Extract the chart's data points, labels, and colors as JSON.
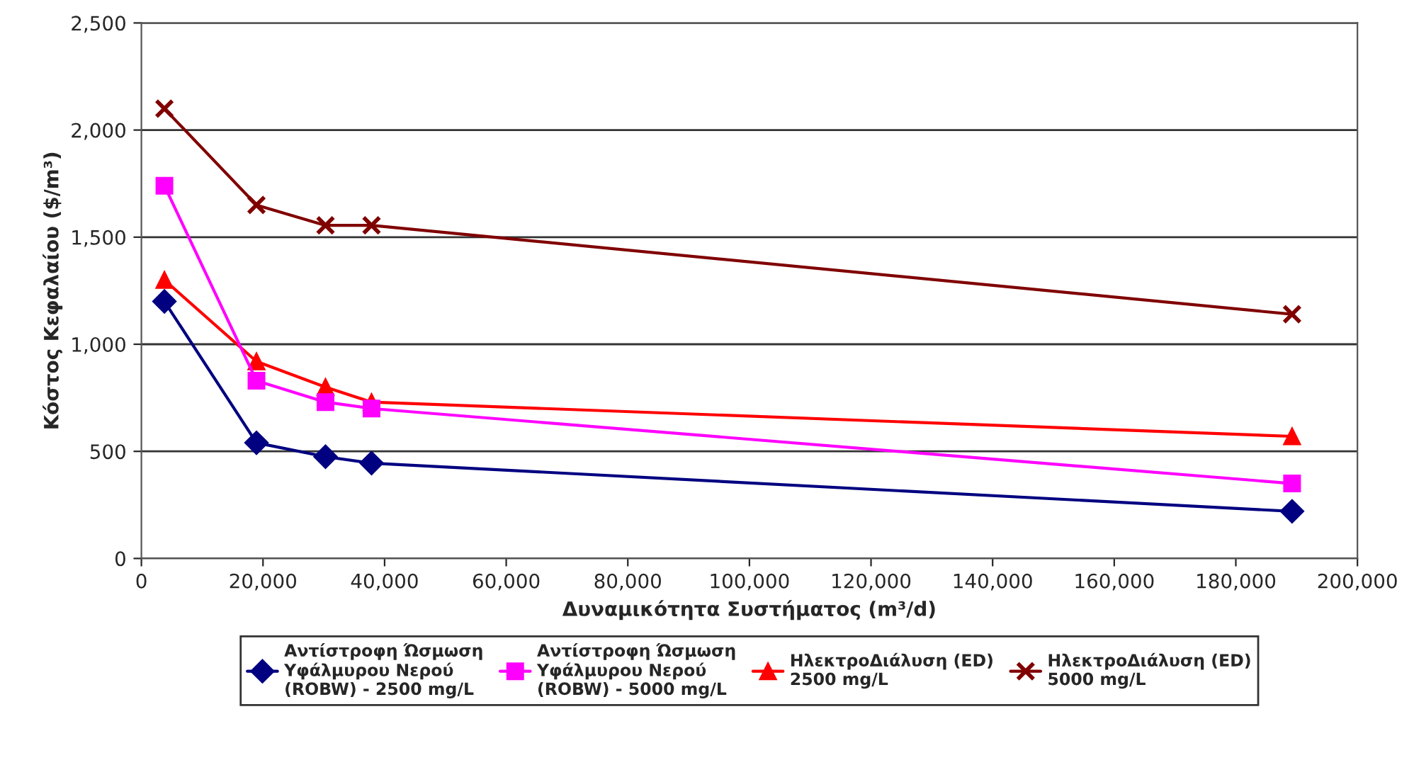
{
  "chart_data": {
    "type": "line",
    "xlabel": "Δυναμικότητα Συστήματος (m³/d)",
    "ylabel": "Κόστος Κεφαλαίου ($/m³)",
    "x": [
      3785,
      18925,
      30280,
      37850,
      189250
    ],
    "series": [
      {
        "name": "Αντίστροφη Ώσμωση Υφάλμυρου Νερού (ROBW) - 2500 mg/L",
        "color": "#000080",
        "marker": "diamond",
        "values": [
          1200,
          540,
          475,
          445,
          220
        ]
      },
      {
        "name": "Αντίστροφη Ώσμωση Υφάλμυρου Νερού (ROBW) - 5000 mg/L",
        "color": "#ff00ff",
        "marker": "square",
        "values": [
          1740,
          830,
          730,
          700,
          350
        ]
      },
      {
        "name": "ΗλεκτροΔιάλυση (ED) 2500 mg/L",
        "color": "#ff0000",
        "marker": "triangle",
        "values": [
          1300,
          920,
          800,
          730,
          570
        ]
      },
      {
        "name": "ΗλεκτροΔιάλυση (ED) 5000 mg/L",
        "color": "#800000",
        "marker": "cross",
        "values": [
          2100,
          1650,
          1555,
          1555,
          1140
        ]
      }
    ],
    "xlim": [
      0,
      200000
    ],
    "xticks": [
      {
        "value": 0,
        "label": "0"
      },
      {
        "value": 20000,
        "label": "20,000"
      },
      {
        "value": 40000,
        "label": "40,000"
      },
      {
        "value": 60000,
        "label": "60,000"
      },
      {
        "value": 80000,
        "label": "80,000"
      },
      {
        "value": 100000,
        "label": "100,000"
      },
      {
        "value": 120000,
        "label": "120,000"
      },
      {
        "value": 140000,
        "label": "140,000"
      },
      {
        "value": 160000,
        "label": "160,000"
      },
      {
        "value": 180000,
        "label": "180,000"
      },
      {
        "value": 200000,
        "label": "200,000"
      }
    ],
    "ylim": [
      0,
      2500
    ],
    "yticks": [
      {
        "value": 0,
        "label": "0"
      },
      {
        "value": 500,
        "label": "500"
      },
      {
        "value": 1000,
        "label": "1,000"
      },
      {
        "value": 1500,
        "label": "1,500"
      },
      {
        "value": 2000,
        "label": "2,000"
      },
      {
        "value": 2500,
        "label": "2,500"
      }
    ],
    "grid": "y",
    "legend": "bottom"
  }
}
